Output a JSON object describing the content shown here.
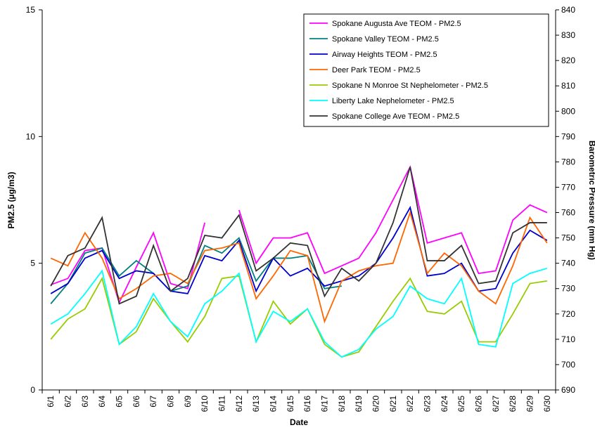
{
  "chart_data": {
    "type": "line",
    "x_label": "Date",
    "y_label": "PM2.5 (µg/m3)",
    "y2_label": "Barometric Pressure (mm Hg)",
    "categories": [
      "6/1",
      "6/2",
      "6/3",
      "6/4",
      "6/5",
      "6/6",
      "6/7",
      "6/8",
      "6/9",
      "6/10",
      "6/11",
      "6/12",
      "6/13",
      "6/14",
      "6/15",
      "6/16",
      "6/17",
      "6/18",
      "6/19",
      "6/20",
      "6/21",
      "6/22",
      "6/23",
      "6/24",
      "6/25",
      "6/26",
      "6/27",
      "6/28",
      "6/29",
      "6/30"
    ],
    "ylim": [
      0,
      15
    ],
    "yticks": [
      0,
      5,
      10,
      15
    ],
    "y2lim": [
      690,
      840
    ],
    "y2ticks": [
      690,
      700,
      710,
      720,
      730,
      740,
      750,
      760,
      770,
      780,
      790,
      800,
      810,
      820,
      830,
      840
    ],
    "grid": false,
    "legend": "upper right",
    "series": [
      {
        "name": "Spokane Augusta Ave TEOM - PM2.5",
        "color": "#ff00ff",
        "values": [
          4.15,
          4.4,
          5.5,
          5.6,
          3.45,
          4.85,
          6.2,
          4.2,
          4.0,
          6.6,
          null,
          7.1,
          5.0,
          6.0,
          6.0,
          6.2,
          4.6,
          4.9,
          5.2,
          6.2,
          7.5,
          8.8,
          5.8,
          6.0,
          6.2,
          4.6,
          4.7,
          6.7,
          7.3,
          7.0
        ]
      },
      {
        "name": "Spokane Valley TEOM - PM2.5",
        "color": "#008080",
        "values": [
          3.4,
          4.2,
          5.4,
          5.6,
          4.5,
          5.1,
          4.6,
          3.9,
          4.1,
          5.7,
          5.4,
          6.0,
          4.3,
          5.2,
          5.2,
          5.3,
          4.0,
          4.1,
          null,
          null,
          null,
          null,
          null,
          null,
          null,
          null,
          null,
          null,
          null,
          null
        ]
      },
      {
        "name": "Airway Heights TEOM - PM2.5",
        "color": "#0000cc",
        "values": [
          3.8,
          4.2,
          5.2,
          5.5,
          4.4,
          4.7,
          4.6,
          3.9,
          3.8,
          5.3,
          5.1,
          5.9,
          3.9,
          5.2,
          4.5,
          4.8,
          4.1,
          4.3,
          4.5,
          5.0,
          6.0,
          7.2,
          4.5,
          4.6,
          5.0,
          3.9,
          4.0,
          5.4,
          6.3,
          5.9
        ]
      },
      {
        "name": "Deer Park TEOM - PM2.5",
        "color": "#ff6600",
        "values": [
          5.2,
          4.9,
          6.2,
          5.2,
          3.6,
          4.0,
          4.5,
          4.6,
          4.2,
          5.5,
          5.6,
          5.8,
          3.6,
          4.5,
          5.5,
          5.3,
          2.7,
          4.3,
          4.7,
          4.9,
          5.0,
          7.0,
          4.6,
          5.4,
          4.9,
          3.9,
          3.4,
          4.9,
          6.8,
          5.8
        ]
      },
      {
        "name": "Spokane N Monroe St Nephelometer - PM2.5",
        "color": "#99cc00",
        "values": [
          2.0,
          2.8,
          3.2,
          4.4,
          1.8,
          2.3,
          3.6,
          2.7,
          1.9,
          2.9,
          4.4,
          4.5,
          1.9,
          3.5,
          2.6,
          3.2,
          1.8,
          1.3,
          1.5,
          2.5,
          3.5,
          4.4,
          3.1,
          3.0,
          3.5,
          1.9,
          1.9,
          3.0,
          4.2,
          4.3
        ]
      },
      {
        "name": "Liberty Lake Nephelometer - PM2.5",
        "color": "#00ffff",
        "values": [
          2.6,
          3.0,
          3.8,
          4.7,
          1.8,
          2.5,
          3.8,
          2.7,
          2.1,
          3.4,
          3.9,
          4.6,
          1.9,
          3.1,
          2.7,
          3.2,
          1.9,
          1.3,
          1.6,
          2.4,
          2.9,
          4.1,
          3.6,
          3.4,
          4.4,
          1.8,
          1.7,
          4.2,
          4.6,
          4.8
        ]
      },
      {
        "name": "Spokane College Ave TEOM - PM2.5",
        "color": "#333333",
        "values": [
          4.1,
          5.3,
          5.6,
          6.8,
          3.4,
          3.7,
          5.7,
          3.9,
          4.4,
          6.1,
          6.0,
          6.9,
          4.7,
          5.2,
          5.8,
          5.7,
          3.7,
          4.8,
          4.3,
          5.0,
          6.6,
          8.8,
          5.1,
          5.1,
          5.7,
          4.2,
          4.3,
          6.2,
          6.6,
          6.6
        ]
      }
    ]
  }
}
